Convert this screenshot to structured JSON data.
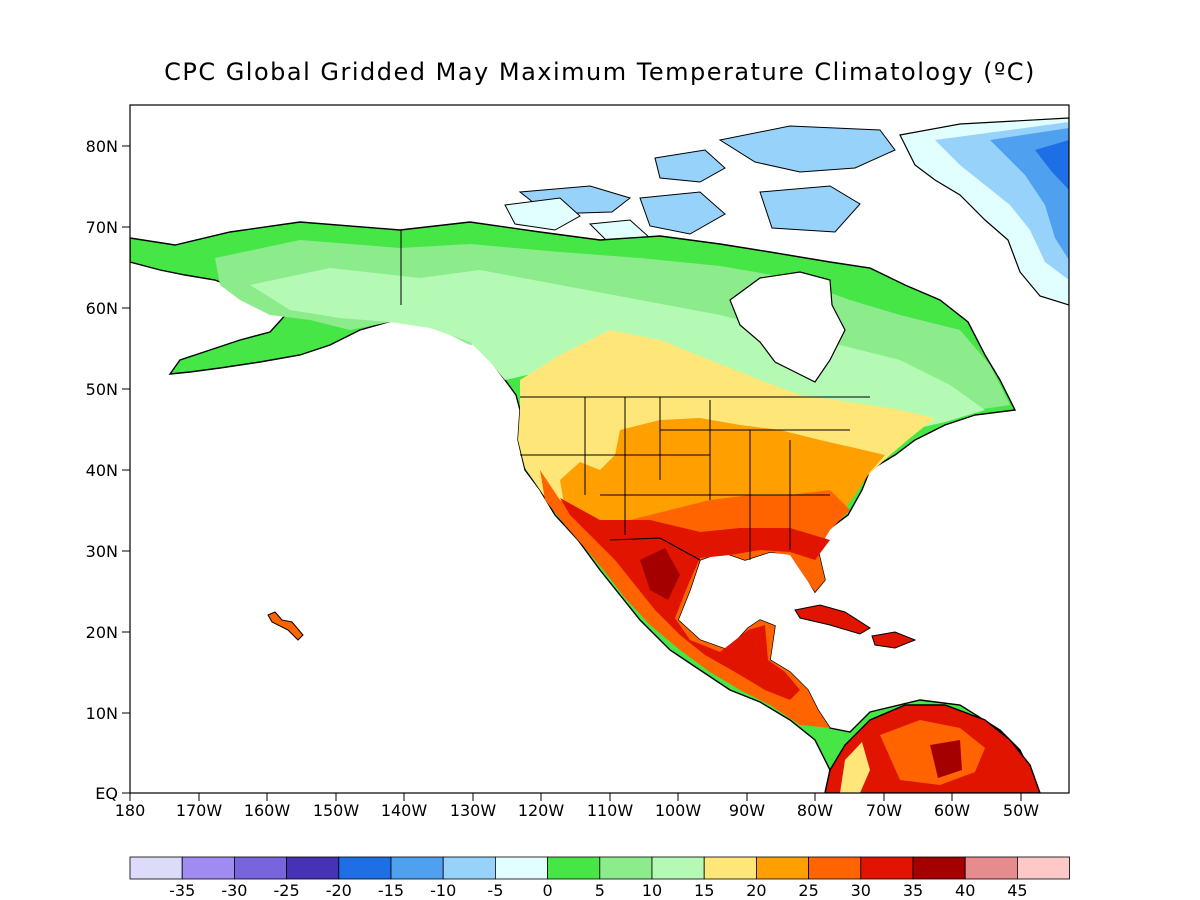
{
  "title": "CPC Global Gridded May Maximum Temperature Climatology (ºC)",
  "map": {
    "lat_labels": [
      "80N",
      "70N",
      "60N",
      "50N",
      "40N",
      "30N",
      "20N",
      "10N",
      "EQ"
    ],
    "lon_labels": [
      "180",
      "170W",
      "160W",
      "150W",
      "140W",
      "130W",
      "120W",
      "110W",
      "100W",
      "90W",
      "80W",
      "70W",
      "60W",
      "50W"
    ]
  },
  "colorbar": {
    "colors": [
      "#dcdcfa",
      "#a08cf0",
      "#7864dc",
      "#4632b4",
      "#1e6ee6",
      "#50a0f0",
      "#96d2fa",
      "#e1ffff",
      "#46e646",
      "#8cec8c",
      "#b4fab4",
      "#ffe678",
      "#ffa000",
      "#ff6400",
      "#e11400",
      "#a50000",
      "#e68c8c",
      "#ffc8c8"
    ],
    "labels": [
      "-35",
      "-30",
      "-25",
      "-20",
      "-15",
      "-10",
      "-5",
      "0",
      "5",
      "10",
      "15",
      "20",
      "25",
      "30",
      "35",
      "40",
      "45"
    ]
  }
}
